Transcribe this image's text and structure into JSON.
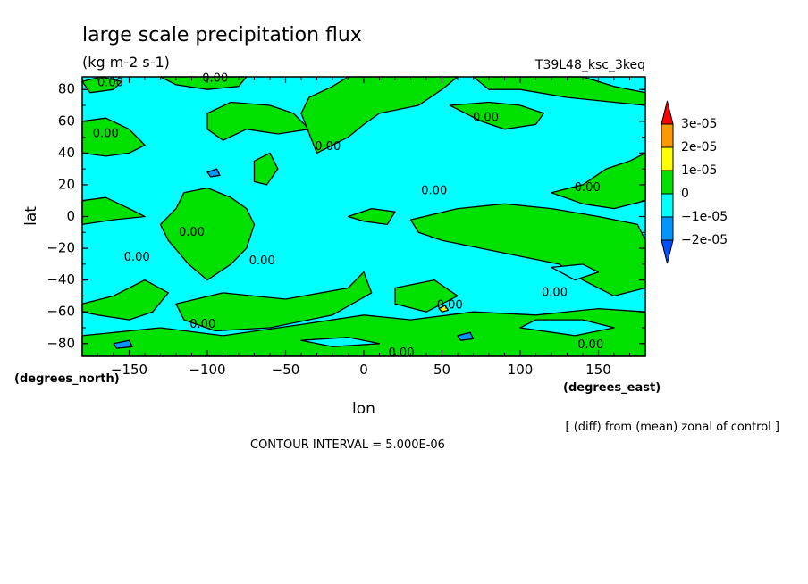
{
  "chart_data": {
    "type": "heatmap",
    "title": "large scale precipitation flux",
    "subtitle": "(kg m-2 s-1)",
    "run_label": "T39L48_ksc_3keq",
    "xlabel": "lon",
    "ylabel": "lat",
    "x_units": "(degrees_east)",
    "y_units": "(degrees_north)",
    "xlim": [
      -180,
      180
    ],
    "ylim": [
      -88,
      88
    ],
    "x_ticks": [
      -150,
      -100,
      -50,
      0,
      50,
      100,
      150
    ],
    "y_ticks": [
      -80,
      -60,
      -40,
      -20,
      0,
      20,
      40,
      60,
      80
    ],
    "contour_interval_text": "CONTOUR INTERVAL = 5.000E-06",
    "diff_note": "[ (diff) from (mean) zonal of control ]",
    "contour_label": "0.00",
    "contour_label_positions": [
      {
        "lon": -162,
        "lat": 84
      },
      {
        "lon": -95,
        "lat": 87
      },
      {
        "lon": -165,
        "lat": 52
      },
      {
        "lon": -23,
        "lat": 44
      },
      {
        "lon": 78,
        "lat": 62
      },
      {
        "lon": 45,
        "lat": 16
      },
      {
        "lon": 143,
        "lat": 18
      },
      {
        "lon": -110,
        "lat": -10
      },
      {
        "lon": -145,
        "lat": -26
      },
      {
        "lon": -65,
        "lat": -28
      },
      {
        "lon": 55,
        "lat": -56
      },
      {
        "lon": 122,
        "lat": -48
      },
      {
        "lon": -103,
        "lat": -68
      },
      {
        "lon": 145,
        "lat": -81
      },
      {
        "lon": 24,
        "lat": -86
      }
    ],
    "colorbar": {
      "labels": [
        "3e-05",
        "2e-05",
        "1e-05",
        "0",
        "-1e-05",
        "-2e-05"
      ],
      "colors": [
        "#ff0000",
        "#ff9900",
        "#ffff00",
        "#00e100",
        "#00ffff",
        "#0096ff",
        "#0050ff"
      ]
    },
    "regions": [
      {
        "value": "1e-05 to 2e-05",
        "color": "#ffff00"
      },
      {
        "value": "0 to 1e-05",
        "color": "#00e100"
      },
      {
        "value": "-1e-05 to 0",
        "color": "#00ffff"
      },
      {
        "value": "-2e-05 to -1e-05",
        "color": "#0096ff"
      }
    ],
    "green_patches": [
      [
        [
          -180,
          60
        ],
        [
          -165,
          62
        ],
        [
          -150,
          55
        ],
        [
          -140,
          45
        ],
        [
          -150,
          40
        ],
        [
          -165,
          38
        ],
        [
          -180,
          40
        ]
      ],
      [
        [
          -180,
          85
        ],
        [
          -168,
          88
        ],
        [
          -155,
          85
        ],
        [
          -160,
          80
        ],
        [
          -175,
          78
        ]
      ],
      [
        [
          -130,
          88
        ],
        [
          -75,
          88
        ],
        [
          -80,
          82
        ],
        [
          -100,
          80
        ],
        [
          -120,
          83
        ]
      ],
      [
        [
          -100,
          65
        ],
        [
          -85,
          72
        ],
        [
          -60,
          70
        ],
        [
          -45,
          65
        ],
        [
          -35,
          55
        ],
        [
          -55,
          52
        ],
        [
          -75,
          55
        ],
        [
          -90,
          48
        ],
        [
          -100,
          55
        ]
      ],
      [
        [
          -30,
          40
        ],
        [
          -10,
          50
        ],
        [
          0,
          58
        ],
        [
          10,
          65
        ],
        [
          35,
          70
        ],
        [
          50,
          80
        ],
        [
          60,
          88
        ],
        [
          -10,
          88
        ],
        [
          -20,
          82
        ],
        [
          -35,
          75
        ],
        [
          -40,
          65
        ]
      ],
      [
        [
          70,
          88
        ],
        [
          140,
          88
        ],
        [
          160,
          82
        ],
        [
          180,
          78
        ],
        [
          180,
          70
        ],
        [
          160,
          72
        ],
        [
          130,
          75
        ],
        [
          100,
          80
        ],
        [
          80,
          80
        ]
      ],
      [
        [
          55,
          70
        ],
        [
          75,
          60
        ],
        [
          90,
          55
        ],
        [
          110,
          58
        ],
        [
          115,
          65
        ],
        [
          100,
          70
        ],
        [
          80,
          72
        ]
      ],
      [
        [
          -70,
          35
        ],
        [
          -60,
          40
        ],
        [
          -55,
          30
        ],
        [
          -62,
          20
        ],
        [
          -70,
          22
        ]
      ],
      [
        [
          120,
          15
        ],
        [
          140,
          20
        ],
        [
          155,
          30
        ],
        [
          170,
          35
        ],
        [
          180,
          40
        ],
        [
          180,
          10
        ],
        [
          160,
          5
        ],
        [
          140,
          8
        ]
      ],
      [
        [
          -180,
          10
        ],
        [
          -165,
          12
        ],
        [
          -150,
          5
        ],
        [
          -140,
          0
        ],
        [
          -160,
          -2
        ],
        [
          -180,
          -5
        ]
      ],
      [
        [
          -115,
          15
        ],
        [
          -100,
          18
        ],
        [
          -85,
          12
        ],
        [
          -75,
          5
        ],
        [
          -70,
          -5
        ],
        [
          -75,
          -20
        ],
        [
          -85,
          -30
        ],
        [
          -100,
          -40
        ],
        [
          -112,
          -30
        ],
        [
          -125,
          -15
        ],
        [
          -130,
          -5
        ],
        [
          -120,
          5
        ]
      ],
      [
        [
          -10,
          0
        ],
        [
          5,
          5
        ],
        [
          20,
          3
        ],
        [
          15,
          -5
        ],
        [
          0,
          -3
        ]
      ],
      [
        [
          30,
          -2
        ],
        [
          60,
          5
        ],
        [
          90,
          8
        ],
        [
          120,
          5
        ],
        [
          150,
          0
        ],
        [
          175,
          -5
        ],
        [
          180,
          -15
        ],
        [
          180,
          -45
        ],
        [
          160,
          -50
        ],
        [
          140,
          -40
        ],
        [
          125,
          -30
        ],
        [
          100,
          -25
        ],
        [
          75,
          -20
        ],
        [
          50,
          -15
        ],
        [
          35,
          -10
        ]
      ],
      [
        [
          -180,
          -55
        ],
        [
          -160,
          -50
        ],
        [
          -140,
          -40
        ],
        [
          -125,
          -48
        ],
        [
          -135,
          -60
        ],
        [
          -150,
          -65
        ],
        [
          -170,
          -62
        ],
        [
          -180,
          -60
        ]
      ],
      [
        [
          -120,
          -55
        ],
        [
          -90,
          -48
        ],
        [
          -50,
          -52
        ],
        [
          -10,
          -45
        ],
        [
          0,
          -35
        ],
        [
          5,
          -48
        ],
        [
          -20,
          -62
        ],
        [
          -60,
          -70
        ],
        [
          -95,
          -72
        ],
        [
          -115,
          -65
        ]
      ],
      [
        [
          20,
          -45
        ],
        [
          45,
          -40
        ],
        [
          60,
          -50
        ],
        [
          40,
          -60
        ],
        [
          20,
          -55
        ]
      ],
      [
        [
          -180,
          -75
        ],
        [
          -130,
          -70
        ],
        [
          -90,
          -75
        ],
        [
          -40,
          -68
        ],
        [
          0,
          -62
        ],
        [
          30,
          -65
        ],
        [
          70,
          -60
        ],
        [
          110,
          -62
        ],
        [
          150,
          -58
        ],
        [
          180,
          -60
        ],
        [
          180,
          -88
        ],
        [
          -180,
          -88
        ]
      ]
    ],
    "cyan_patches": [
      [
        [
          100,
          -70
        ],
        [
          135,
          -75
        ],
        [
          160,
          -70
        ],
        [
          140,
          -65
        ],
        [
          110,
          -65
        ]
      ],
      [
        [
          -40,
          -78
        ],
        [
          -10,
          -76
        ],
        [
          10,
          -80
        ],
        [
          -20,
          -82
        ]
      ],
      [
        [
          120,
          -32
        ],
        [
          140,
          -30
        ],
        [
          150,
          -35
        ],
        [
          135,
          -40
        ]
      ]
    ],
    "blue_patches": [
      [
        [
          -160,
          -80
        ],
        [
          -150,
          -78
        ],
        [
          -148,
          -82
        ],
        [
          -158,
          -83
        ]
      ],
      [
        [
          60,
          -75
        ],
        [
          68,
          -73
        ],
        [
          70,
          -77
        ],
        [
          62,
          -78
        ]
      ],
      [
        [
          -100,
          28
        ],
        [
          -94,
          30
        ],
        [
          -92,
          26
        ],
        [
          -98,
          25
        ]
      ]
    ],
    "yellow_patches": [
      [
        [
          48,
          -58
        ],
        [
          52,
          -56
        ],
        [
          54,
          -59
        ],
        [
          50,
          -60
        ]
      ]
    ]
  }
}
